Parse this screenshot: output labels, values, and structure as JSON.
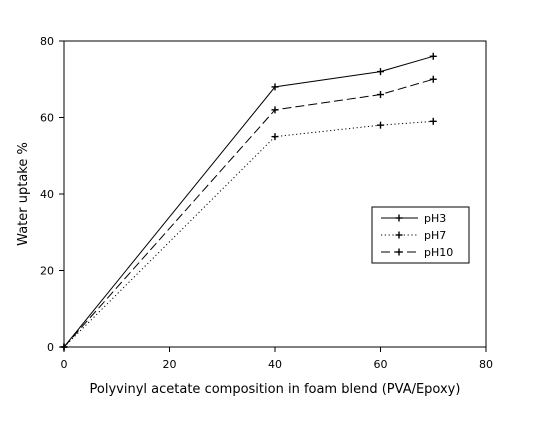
{
  "chart_data": {
    "type": "line",
    "title": "",
    "xlabel": "Polyvinyl acetate composition in foam blend (PVA/Epoxy)",
    "ylabel": "Water uptake %",
    "xlim": [
      0,
      80
    ],
    "ylim": [
      0,
      80
    ],
    "xticks": [
      0,
      20,
      40,
      60,
      80
    ],
    "yticks": [
      0,
      20,
      40,
      60,
      80
    ],
    "grid": false,
    "legend_position": "right-center",
    "x": [
      0,
      40,
      60,
      70
    ],
    "series": [
      {
        "name": "pH3",
        "values": [
          0,
          68,
          72,
          76
        ],
        "style": "solid",
        "color": "#000000"
      },
      {
        "name": "pH7",
        "values": [
          0,
          55,
          58,
          59
        ],
        "style": "dotted",
        "color": "#000000"
      },
      {
        "name": "pH10",
        "values": [
          0,
          62,
          66,
          70
        ],
        "style": "dashed",
        "color": "#000000"
      }
    ]
  }
}
